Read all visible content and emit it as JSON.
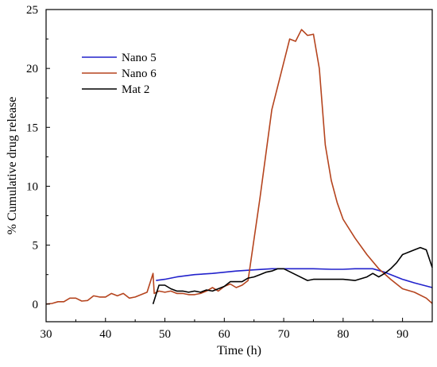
{
  "chart_data": {
    "type": "line",
    "title": "",
    "xlabel": "Time (h)",
    "ylabel": "% Cumulative drug release",
    "xlim": [
      30,
      95
    ],
    "ylim": [
      -1.5,
      25
    ],
    "xticks": [
      30,
      40,
      50,
      60,
      70,
      80,
      90
    ],
    "yticks": [
      0,
      5,
      10,
      15,
      20,
      25
    ],
    "xtick_labels": [
      "30",
      "40",
      "50",
      "60",
      "70",
      "80",
      "90"
    ],
    "ytick_labels": [
      "0",
      "5",
      "10",
      "15",
      "20",
      "25"
    ],
    "grid": false,
    "legend_position": "top-left",
    "series": [
      {
        "name": "Nano 5",
        "color": "#2222cc",
        "x": [
          48.5,
          50,
          52,
          55,
          58,
          60,
          62,
          65,
          68,
          70,
          72,
          75,
          78,
          80,
          82,
          85,
          87,
          90,
          92,
          95
        ],
        "y": [
          2.0,
          2.1,
          2.3,
          2.5,
          2.6,
          2.7,
          2.8,
          2.9,
          3.0,
          3.0,
          3.0,
          3.0,
          2.95,
          2.95,
          3.0,
          3.0,
          2.7,
          2.1,
          1.8,
          1.4
        ]
      },
      {
        "name": "Nano 6",
        "color": "#b5441e",
        "x": [
          30,
          31,
          32,
          33,
          34,
          35,
          36,
          37,
          38,
          39,
          40,
          41,
          42,
          43,
          44,
          45,
          46,
          47,
          48,
          48.2,
          49,
          50,
          51,
          52,
          53,
          54,
          55,
          56,
          57,
          58,
          59,
          60,
          61,
          62,
          63,
          64,
          66,
          68,
          70,
          71,
          72,
          73,
          74,
          75,
          76,
          77,
          78,
          79,
          80,
          82,
          84,
          86,
          88,
          90,
          92,
          94,
          95
        ],
        "y": [
          0.0,
          0.05,
          0.2,
          0.2,
          0.5,
          0.5,
          0.25,
          0.3,
          0.7,
          0.6,
          0.6,
          0.9,
          0.7,
          0.9,
          0.5,
          0.6,
          0.8,
          1.0,
          2.6,
          0.9,
          1.1,
          1.0,
          1.1,
          0.9,
          0.9,
          0.8,
          0.8,
          0.9,
          1.1,
          1.4,
          1.1,
          1.5,
          1.7,
          1.4,
          1.6,
          2.0,
          9.0,
          16.5,
          20.5,
          22.5,
          22.3,
          23.3,
          22.8,
          22.9,
          20.0,
          13.5,
          10.5,
          8.6,
          7.2,
          5.6,
          4.2,
          3.0,
          2.1,
          1.3,
          1.0,
          0.5,
          0.05
        ]
      },
      {
        "name": "Mat 2",
        "color": "#000000",
        "x": [
          48,
          49,
          50,
          51,
          52,
          53,
          54,
          55,
          56,
          57,
          58,
          59,
          60,
          61,
          62,
          63,
          64,
          65,
          66,
          67,
          68,
          69,
          70,
          72,
          74,
          75,
          78,
          80,
          82,
          84,
          85,
          86,
          87,
          88,
          89,
          90,
          91,
          92,
          93,
          94,
          95
        ],
        "y": [
          0.0,
          1.6,
          1.6,
          1.3,
          1.1,
          1.1,
          1.0,
          1.1,
          1.0,
          1.2,
          1.1,
          1.3,
          1.5,
          1.9,
          1.9,
          1.9,
          2.2,
          2.3,
          2.5,
          2.7,
          2.8,
          3.0,
          3.0,
          2.5,
          2.0,
          2.1,
          2.1,
          2.1,
          2.0,
          2.3,
          2.6,
          2.3,
          2.6,
          3.0,
          3.5,
          4.2,
          4.4,
          4.6,
          4.8,
          4.6,
          3.1
        ]
      }
    ]
  }
}
